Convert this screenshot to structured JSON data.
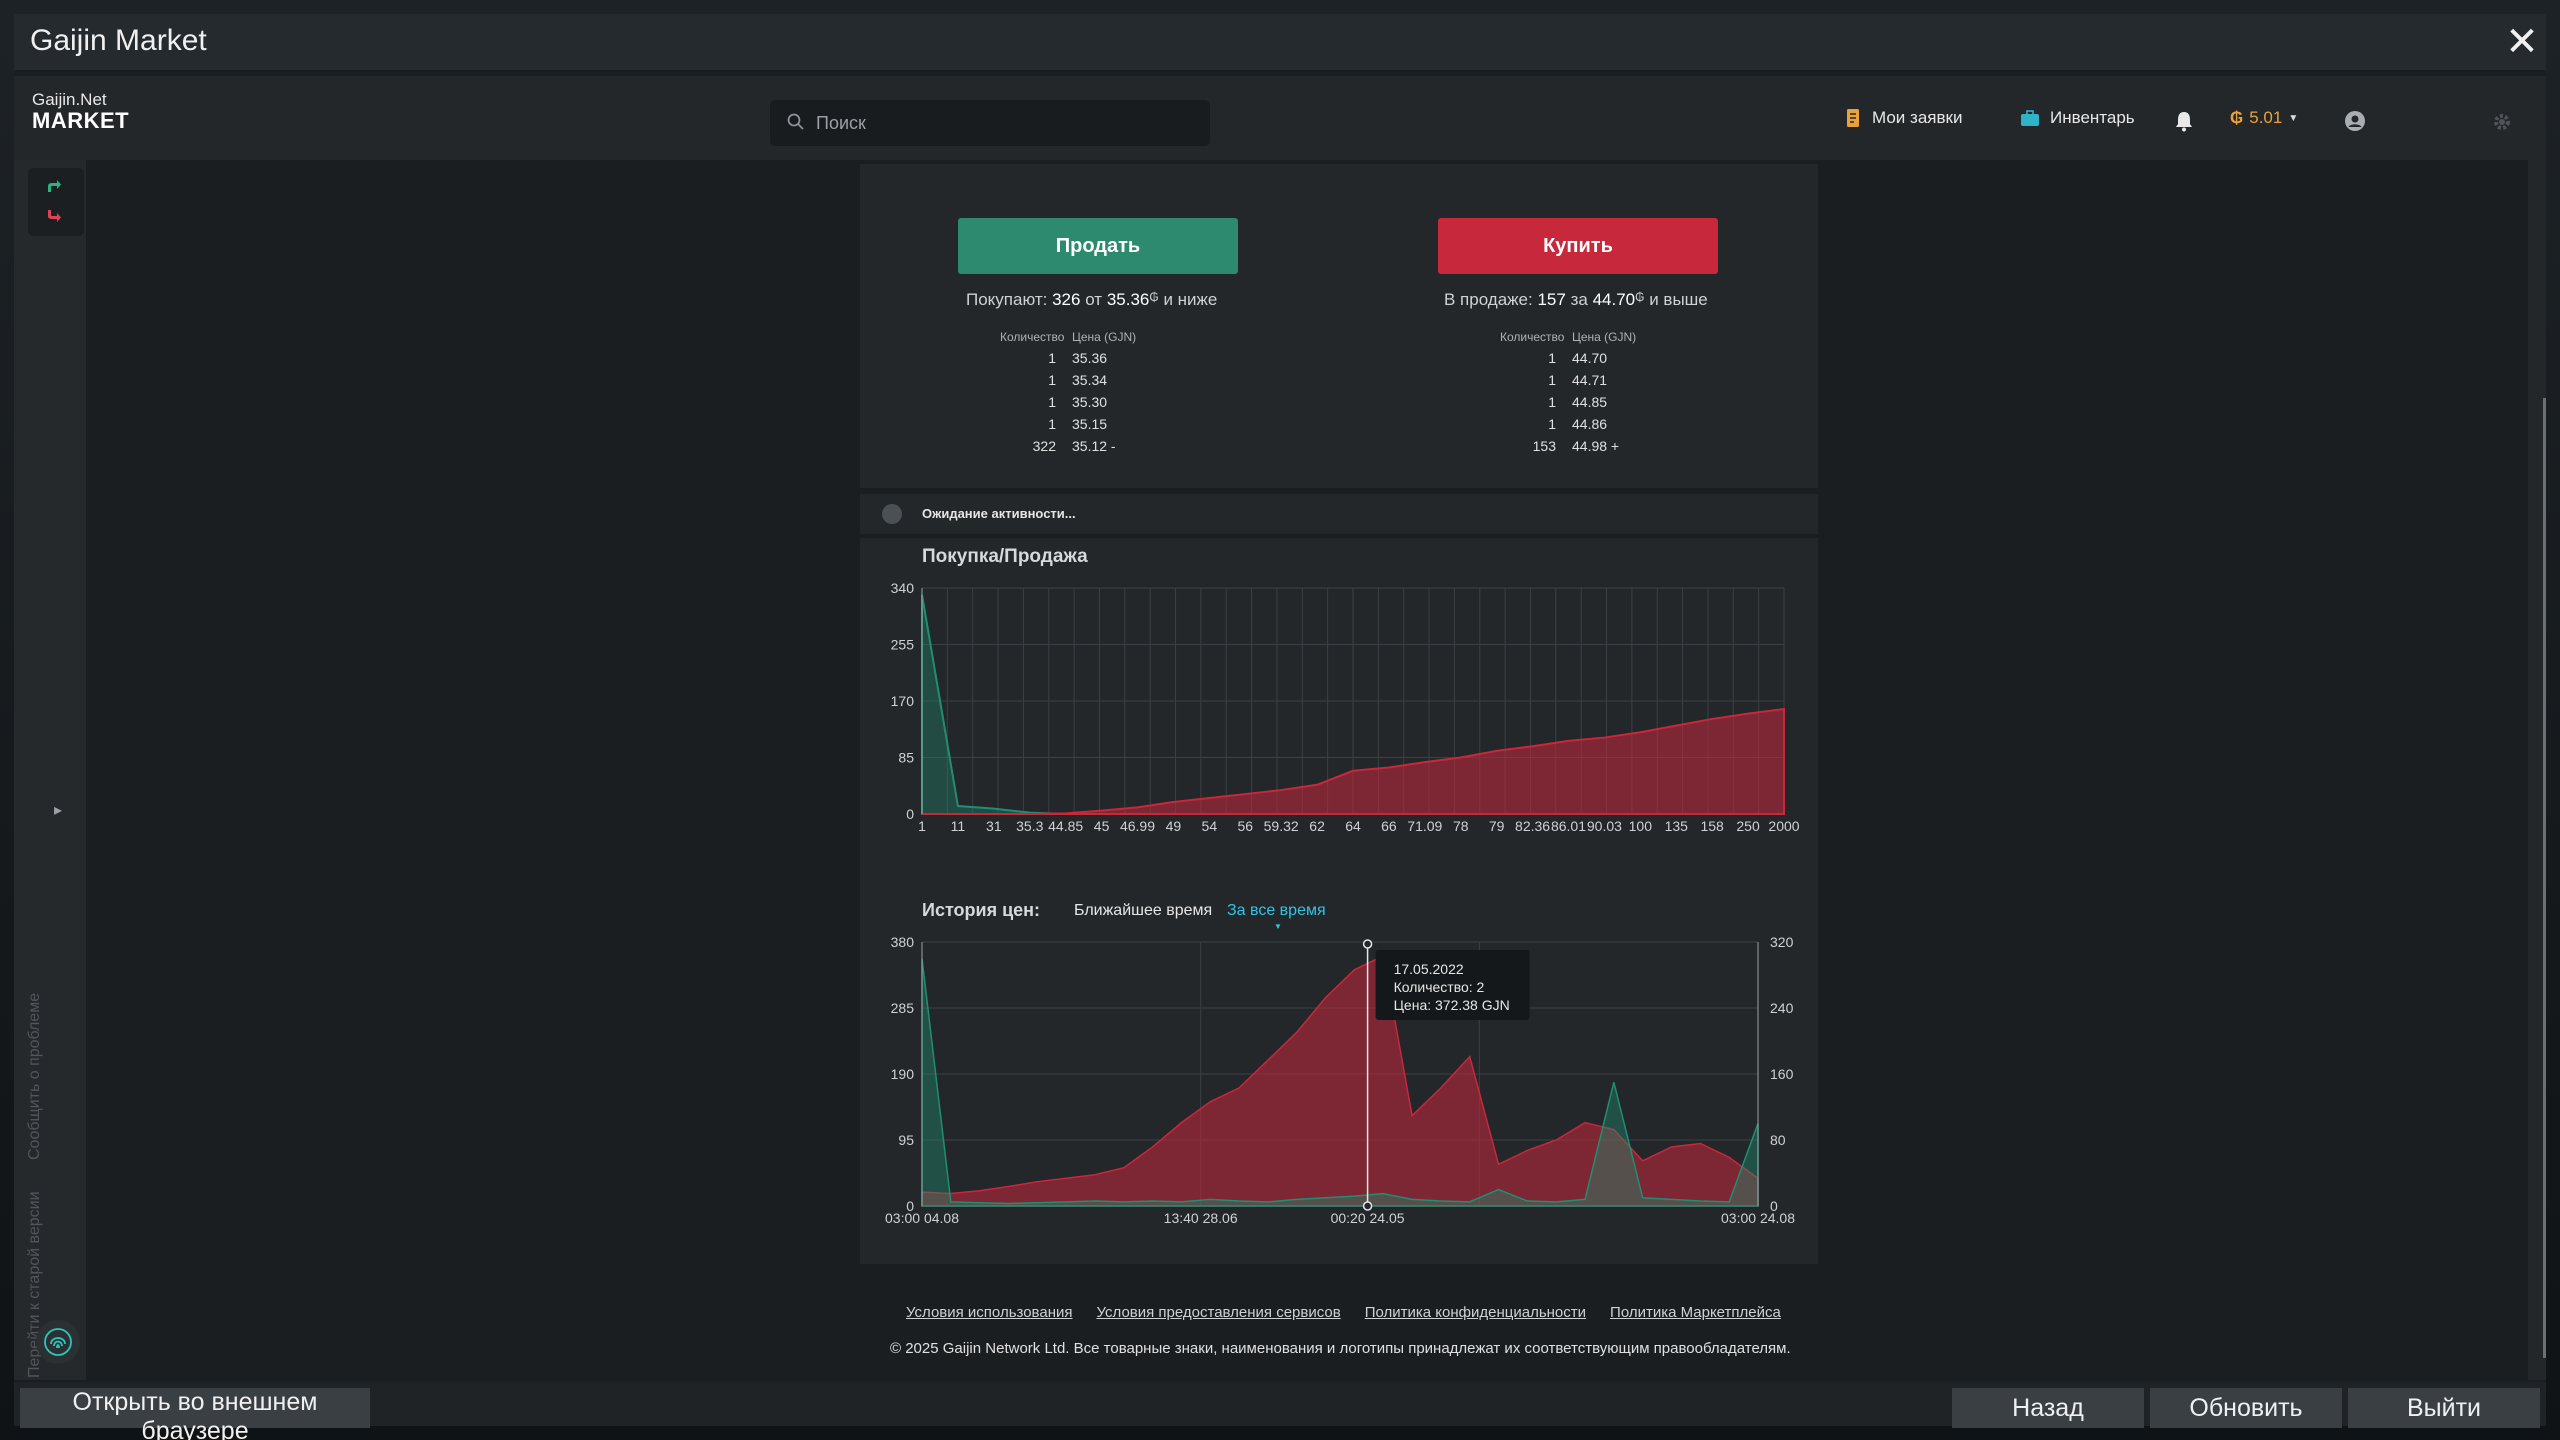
{
  "window": {
    "title": "Gaijin Market"
  },
  "header": {
    "logo_small": "Gaijin.Net",
    "logo_big": "MARKET",
    "search_placeholder": "Поиск",
    "my_orders": "Мои заявки",
    "inventory": "Инвентарь",
    "balance": "5.01"
  },
  "sidebar": {
    "report_problem": "Сообщить о проблеме",
    "old_version": "Перейти к старой версии"
  },
  "order": {
    "sell_label": "Продать",
    "buy_label": "Купить",
    "buy_summary": {
      "prefix": "Покупают:",
      "count": "326",
      "mid": "от",
      "price": "35.36",
      "suffix": "и ниже"
    },
    "sell_summary": {
      "prefix": "В продаже:",
      "count": "157",
      "mid": "за",
      "price": "44.70",
      "suffix": "и выше"
    },
    "col_qty": "Количество",
    "col_price": "Цена (GJN)",
    "bids": [
      {
        "qty": "1",
        "price": "35.36"
      },
      {
        "qty": "1",
        "price": "35.34"
      },
      {
        "qty": "1",
        "price": "35.30"
      },
      {
        "qty": "1",
        "price": "35.15"
      },
      {
        "qty": "322",
        "price": "35.12 -"
      }
    ],
    "asks": [
      {
        "qty": "1",
        "price": "44.70"
      },
      {
        "qty": "1",
        "price": "44.71"
      },
      {
        "qty": "1",
        "price": "44.85"
      },
      {
        "qty": "1",
        "price": "44.86"
      },
      {
        "qty": "153",
        "price": "44.98 +"
      }
    ]
  },
  "activity": {
    "text": "Ожидание активности..."
  },
  "depth_chart": {
    "title": "Покупка/Продажа",
    "y_ticks": [
      "0",
      "85",
      "170",
      "255",
      "340"
    ],
    "x_ticks": [
      "1",
      "11",
      "31",
      "35.3",
      "44.85",
      "45",
      "46.99",
      "49",
      "54",
      "56",
      "59.32",
      "62",
      "64",
      "66",
      "71.09",
      "78",
      "79",
      "82.36",
      "86.01",
      "90.03",
      "100",
      "135",
      "158",
      "250",
      "2000"
    ]
  },
  "history": {
    "title": "История цен:",
    "tab_recent": "Ближайшее время",
    "tab_all": "За все время",
    "y_left": [
      "0",
      "95",
      "190",
      "285",
      "380"
    ],
    "y_right": [
      "0",
      "80",
      "160",
      "240",
      "320"
    ],
    "x_ticks": [
      "03:00 04.08",
      "13:40 28.06",
      "00:20 24.05",
      "03:00 24.08"
    ],
    "tooltip": {
      "date": "17.05.2022",
      "qty": "Количество: 2",
      "price": "Цена: 372.38 GJN"
    }
  },
  "chart_data": [
    {
      "type": "area",
      "title": "Покупка/Продажа",
      "categories": [
        "1",
        "11",
        "31",
        "35.3",
        "44.85",
        "45",
        "46.99",
        "49",
        "54",
        "56",
        "59.32",
        "62",
        "64",
        "66",
        "71.09",
        "78",
        "79",
        "82.36",
        "86.01",
        "90.03",
        "100",
        "135",
        "158",
        "250",
        "2000"
      ],
      "ylim": [
        0,
        340
      ],
      "series": [
        {
          "color": "#1f8f72",
          "values": [
            330,
            12,
            8,
            2,
            0,
            0,
            0,
            0,
            0,
            0,
            0,
            0,
            0,
            0,
            0,
            0,
            0,
            0,
            0,
            0,
            0,
            0,
            0,
            0,
            0
          ]
        },
        {
          "color": "#c7283b",
          "values": [
            0,
            0,
            0,
            0,
            1,
            5,
            10,
            18,
            24,
            30,
            36,
            44,
            65,
            70,
            78,
            85,
            95,
            102,
            110,
            115,
            123,
            133,
            143,
            151,
            158
          ]
        }
      ]
    },
    {
      "type": "area",
      "title": "История цен:",
      "x_ticks": [
        "03:00 04.08",
        "13:40 28.06",
        "00:20 24.05",
        "03:00 24.08"
      ],
      "ylim": [
        0,
        380
      ],
      "y2lim": [
        0,
        320
      ],
      "series": [
        {
          "color": "#c7283b",
          "axis": "left",
          "values": [
            20,
            18,
            22,
            28,
            35,
            40,
            45,
            55,
            85,
            120,
            150,
            170,
            210,
            250,
            300,
            340,
            360,
            130,
            170,
            215,
            60,
            80,
            95,
            120,
            110,
            65,
            85,
            90,
            70,
            40
          ]
        },
        {
          "color": "#1f8f72",
          "axis": "right",
          "values": [
            300,
            5,
            4,
            3,
            4,
            5,
            6,
            5,
            6,
            5,
            8,
            6,
            5,
            8,
            10,
            12,
            15,
            8,
            6,
            5,
            20,
            6,
            5,
            8,
            150,
            10,
            8,
            6,
            5,
            100
          ]
        }
      ]
    }
  ],
  "footer": {
    "links": [
      "Условия использования",
      "Условия предоставления сервисов",
      "Политика конфиденциальности",
      "Политика Маркетплейса"
    ],
    "copyright": "© 2025 Gaijin Network Ltd. Все товарные знаки, наименования и логотипы принадлежат их соответствующим правообладателям."
  },
  "bottom": {
    "open_external": "Открыть во внешнем браузере",
    "back": "Назад",
    "refresh": "Обновить",
    "exit": "Выйти"
  },
  "colors": {
    "sell": "#2e8a6e",
    "buy": "#c7283b",
    "accent_tab": "#2fc4e6",
    "gold": "#e9a23b"
  }
}
